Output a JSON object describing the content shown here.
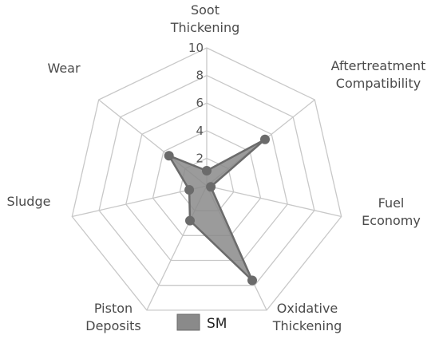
{
  "chart_data": {
    "type": "radar",
    "axes": [
      {
        "label_lines": [
          "Soot",
          "Thickening"
        ]
      },
      {
        "label_lines": [
          "Aftertreatment",
          "Compatibility"
        ]
      },
      {
        "label_lines": [
          "Fuel",
          "Economy"
        ]
      },
      {
        "label_lines": [
          "Oxidative",
          "Thickening"
        ]
      },
      {
        "label_lines": [
          "Piston",
          "Deposits"
        ]
      },
      {
        "label_lines": [
          "Sludge"
        ]
      },
      {
        "label_lines": [
          "Wear"
        ]
      }
    ],
    "rlim": [
      0,
      10
    ],
    "ticks": [
      2,
      4,
      6,
      8,
      10
    ],
    "grid": true,
    "series": [
      {
        "name": "SM",
        "values": [
          1.1,
          5.4,
          0.3,
          7.6,
          2.8,
          1.3,
          3.5
        ],
        "color": "#6b6b6b",
        "fill_color": "#8a8a8a"
      }
    ],
    "legend": "bottom"
  }
}
